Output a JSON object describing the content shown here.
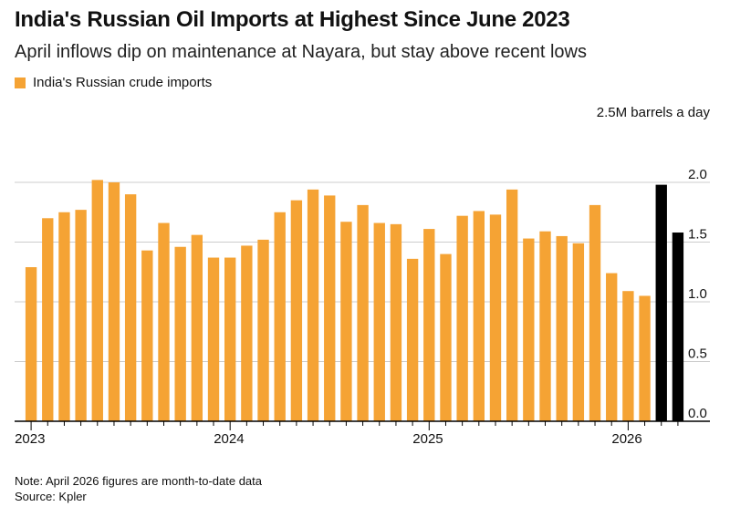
{
  "title": "India's Russian Oil Imports at Highest Since June 2023",
  "subtitle": "April inflows dip on maintenance at Nayara, but stay above recent lows",
  "legend": {
    "label": "India's Russian crude imports"
  },
  "unit_label": "2.5M barrels a day",
  "note": "Note: April 2026 figures are month-to-date data",
  "source": "Source: Kpler",
  "colors": {
    "bar": "#f5a334",
    "highlight": "#000000",
    "grid": "#cccccc",
    "axis": "#000000"
  },
  "chart_data": {
    "type": "bar",
    "categories": [
      "Jan 2023",
      "Feb 2023",
      "Mar 2023",
      "Apr 2023",
      "May 2023",
      "Jun 2023",
      "Jul 2023",
      "Aug 2023",
      "Sep 2023",
      "Oct 2023",
      "Nov 2023",
      "Dec 2023",
      "Jan 2024",
      "Feb 2024",
      "Mar 2024",
      "Apr 2024",
      "May 2024",
      "Jun 2024",
      "Jul 2024",
      "Aug 2024",
      "Sep 2024",
      "Oct 2024",
      "Nov 2024",
      "Dec 2024",
      "Jan 2025",
      "Feb 2025",
      "Mar 2025",
      "Apr 2025",
      "May 2025",
      "Jun 2025",
      "Jul 2025",
      "Aug 2025",
      "Sep 2025",
      "Oct 2025",
      "Nov 2025",
      "Dec 2025",
      "Jan 2026",
      "Feb 2026",
      "Mar 2026",
      "Apr 2026"
    ],
    "values": [
      1.29,
      1.7,
      1.75,
      1.77,
      2.02,
      2.0,
      1.9,
      1.43,
      1.66,
      1.46,
      1.56,
      1.37,
      1.37,
      1.47,
      1.52,
      1.75,
      1.85,
      1.94,
      1.89,
      1.67,
      1.81,
      1.66,
      1.65,
      1.36,
      1.61,
      1.4,
      1.72,
      1.76,
      1.73,
      1.94,
      1.53,
      1.59,
      1.55,
      1.49,
      1.81,
      1.24,
      1.09,
      1.05,
      1.98,
      1.58
    ],
    "highlight_indices": [
      38,
      39
    ],
    "ylim": [
      0,
      2.0
    ],
    "yticks": [
      0.0,
      0.5,
      1.0,
      1.5,
      2.0
    ],
    "ytick_labels": [
      "0.0",
      "0.5",
      "1.0",
      "1.5",
      "2.0"
    ],
    "xtick_labels": [
      "2023",
      "2024",
      "2025",
      "2026"
    ],
    "xtick_indices": [
      0,
      12,
      24,
      36
    ],
    "xlabel": "",
    "ylabel": "",
    "grid": true,
    "legend_position": "top-left"
  }
}
